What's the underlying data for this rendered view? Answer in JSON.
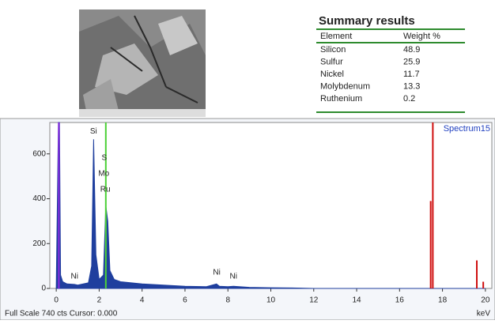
{
  "summary": {
    "title": "Summary results",
    "header": [
      "Element",
      "Weight %"
    ],
    "rows": [
      [
        "Silicon",
        48.9
      ],
      [
        "Sulfur",
        25.9
      ],
      [
        "Nickel",
        11.7
      ],
      [
        "Molybdenum",
        13.3
      ],
      [
        "Ruthenium",
        0.2
      ]
    ]
  },
  "chart_data": {
    "type": "area",
    "title": "Spectrum15",
    "color": "#1f3f9e",
    "x": [
      0,
      0.1,
      0.15,
      0.2,
      0.3,
      0.5,
      0.85,
      1.0,
      1.5,
      1.65,
      1.74,
      1.85,
      2.0,
      2.2,
      2.31,
      2.4,
      2.5,
      2.7,
      3,
      4,
      5,
      6,
      7,
      7.47,
      7.6,
      8,
      8.26,
      9,
      10,
      11,
      12,
      20
    ],
    "values": [
      0,
      740,
      740,
      60,
      30,
      20,
      18,
      15,
      25,
      100,
      665,
      150,
      40,
      60,
      370,
      300,
      80,
      40,
      30,
      20,
      15,
      10,
      8,
      20,
      10,
      8,
      10,
      5,
      3,
      2,
      0,
      0
    ],
    "markers": [
      {
        "x": 0.12,
        "y": 740,
        "color": "#8a2be2"
      },
      {
        "x": 2.31,
        "y": 740,
        "color": "#4cd137"
      },
      {
        "x": 17.45,
        "y": 390,
        "color": "#d01010"
      },
      {
        "x": 17.55,
        "y": 740,
        "color": "#d01010"
      },
      {
        "x": 19.6,
        "y": 125,
        "color": "#d01010"
      },
      {
        "x": 19.9,
        "y": 30,
        "color": "#d01010"
      }
    ],
    "peak_labels": [
      {
        "label": "Si",
        "x": 1.74
      },
      {
        "label": "S",
        "x": 2.31
      },
      {
        "label": "Mo",
        "x": 2.29
      },
      {
        "label": "Ru",
        "x": 2.36
      },
      {
        "label": "Ni",
        "x": 0.85
      },
      {
        "label": "Ni",
        "x": 7.48
      },
      {
        "label": "Ni",
        "x": 8.26
      }
    ],
    "xlim": [
      -0.3,
      20.3
    ],
    "xticks": [
      0,
      2,
      4,
      6,
      8,
      10,
      12,
      14,
      16,
      18,
      20
    ],
    "ylim": [
      0,
      740
    ],
    "yticks": [
      0,
      200,
      400,
      600
    ],
    "x_label": "keV",
    "footer": "Full Scale 740 cts Cursor: 0.000"
  }
}
